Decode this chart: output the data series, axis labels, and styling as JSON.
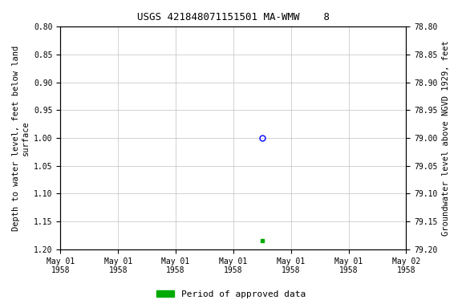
{
  "title": "USGS 421848071151501 MA-WMW    8",
  "ylabel_left": "Depth to water level, feet below land\nsurface",
  "ylabel_right": "Groundwater level above NGVD 1929, feet",
  "ylim_left": [
    0.8,
    1.2
  ],
  "ylim_right": [
    78.8,
    79.2
  ],
  "left_ticks": [
    0.8,
    0.85,
    0.9,
    0.95,
    1.0,
    1.05,
    1.1,
    1.15,
    1.2
  ],
  "right_ticks": [
    79.2,
    79.15,
    79.1,
    79.05,
    79.0,
    78.95,
    78.9,
    78.85,
    78.8
  ],
  "data_point_x": 3.5,
  "data_point_y": 1.0,
  "data_point_color": "blue",
  "approved_x": 3.5,
  "approved_y": 1.185,
  "approved_color": "#00aa00",
  "xlim": [
    0,
    6
  ],
  "xticks": [
    0,
    1,
    2,
    3,
    4,
    5,
    6
  ],
  "xticklabels": [
    "May 01\n1958",
    "May 01\n1958",
    "May 01\n1958",
    "May 01\n1958",
    "May 01\n1958",
    "May 01\n1958",
    "May 02\n1958"
  ],
  "legend_label": "Period of approved data",
  "legend_color": "#00aa00",
  "background_color": "#ffffff",
  "grid_color": "#c0c0c0",
  "font_family": "monospace",
  "title_fontsize": 9,
  "axis_fontsize": 7,
  "ylabel_fontsize": 7.5
}
